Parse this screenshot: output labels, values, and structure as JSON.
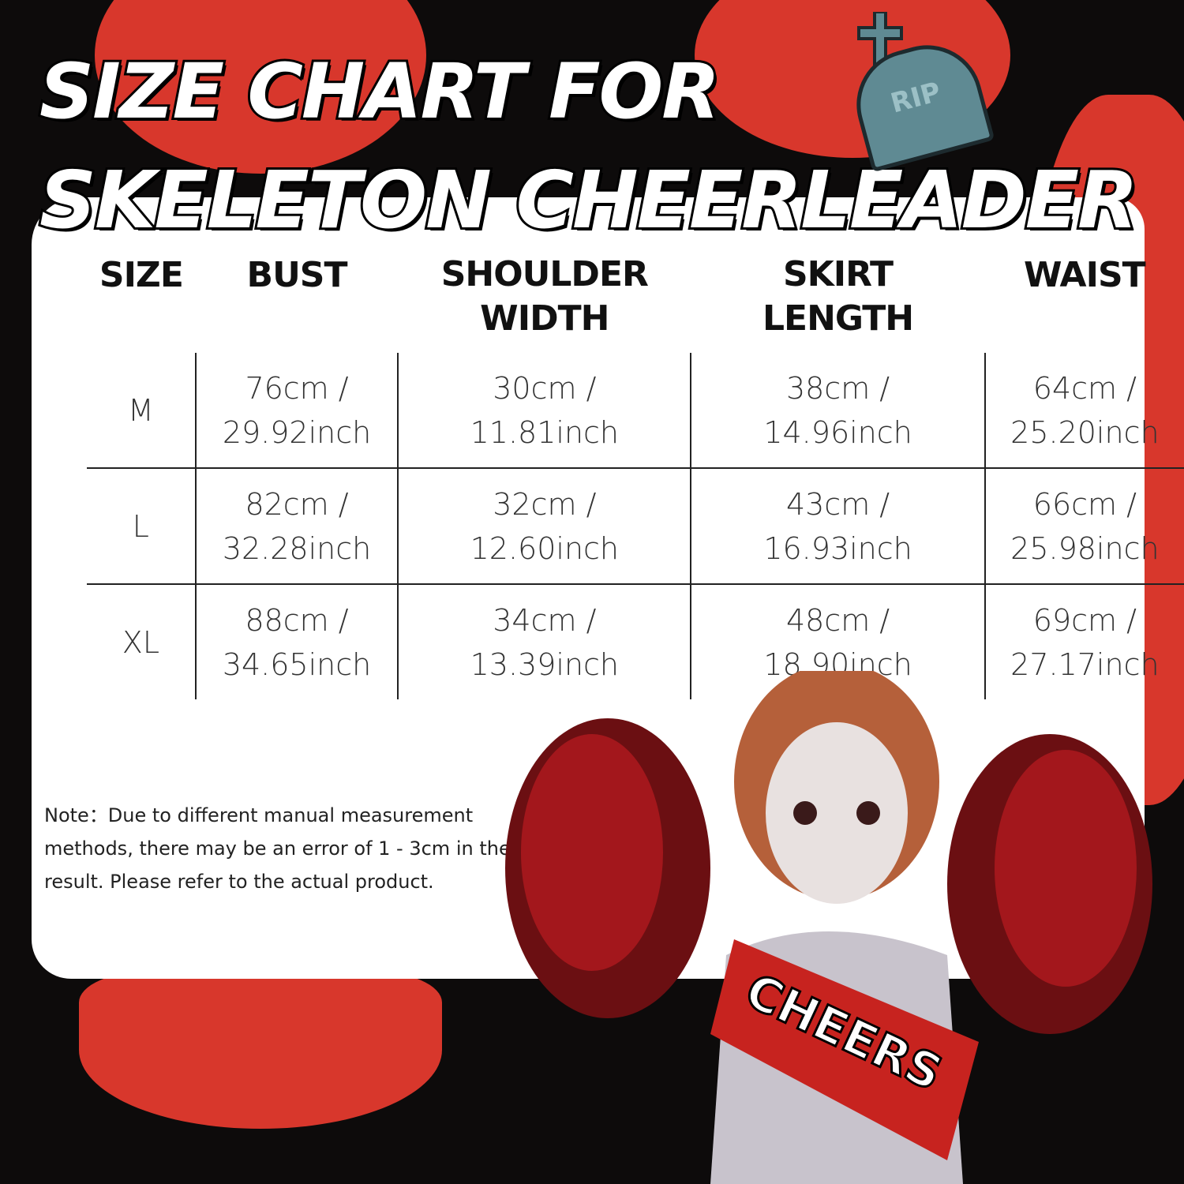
{
  "title": {
    "line1": "SIZE CHART FOR",
    "line2": "SKELETON CHEERLEADER"
  },
  "tombstone_text": "RIP",
  "table": {
    "headers": [
      "SIZE",
      "BUST",
      "SHOULDER WIDTH",
      "SKIRT LENGTH",
      "WAIST"
    ],
    "rows": [
      {
        "size": "M",
        "bust": [
          "76cm /",
          "29.92inch"
        ],
        "shoulder": [
          "30cm /",
          "11.81inch"
        ],
        "skirt": [
          "38cm /",
          "14.96inch"
        ],
        "waist": [
          "64cm /",
          "25.20inch"
        ]
      },
      {
        "size": "L",
        "bust": [
          "82cm /",
          "32.28inch"
        ],
        "shoulder": [
          "32cm /",
          "12.60inch"
        ],
        "skirt": [
          "43cm /",
          "16.93inch"
        ],
        "waist": [
          "66cm /",
          "25.98inch"
        ]
      },
      {
        "size": "XL",
        "bust": [
          "88cm /",
          "34.65inch"
        ],
        "shoulder": [
          "34cm /",
          "13.39inch"
        ],
        "skirt": [
          "48cm /",
          "18.90inch"
        ],
        "waist": [
          "69cm /",
          "27.17inch"
        ]
      }
    ]
  },
  "note": "Note：Due to different manual measurement methods, there may be an error of 1 - 3cm in the  result. Please refer to the actual product.",
  "sash_text": "CHEERS",
  "colors": {
    "background": "#0d0b0b",
    "blood_red": "#d8372c",
    "panel": "#ffffff"
  }
}
